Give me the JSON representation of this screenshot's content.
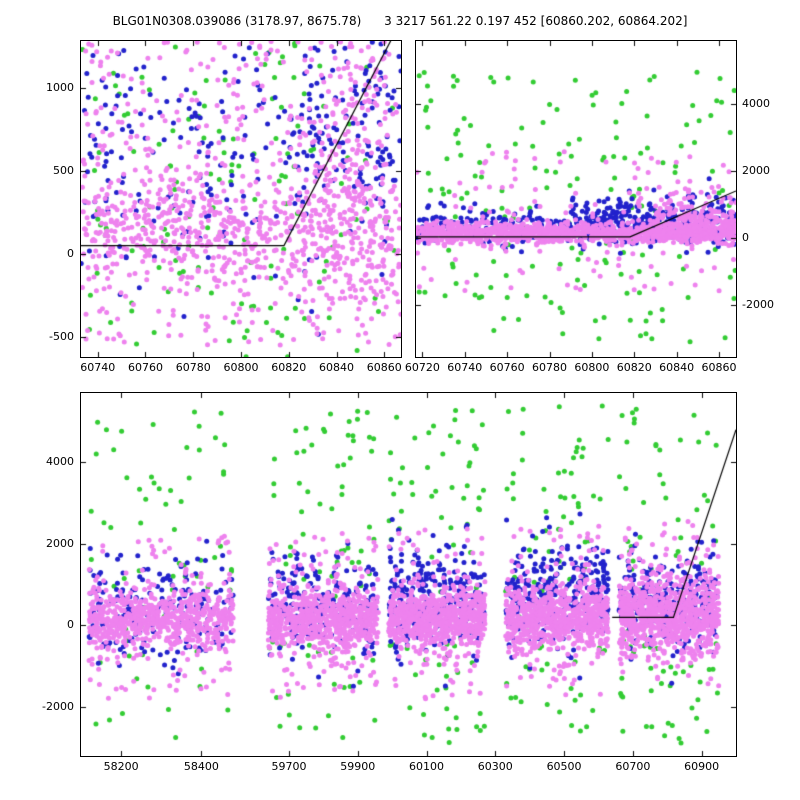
{
  "title": "BLG01N0308.039086 (3178.97, 8675.78)      3 3217 561.22 0.197 452 [60860.202, 60864.202]",
  "colors": {
    "blue": "#2222cc",
    "green": "#33cc33",
    "violet": "#ee82ee",
    "line": "#000000",
    "frame": "#000000",
    "background": "#ffffff"
  },
  "chart_data": [
    {
      "type": "scatter",
      "name": "zoom-left",
      "xlabel": "",
      "ylabel": "",
      "xlim": [
        60733,
        60867
      ],
      "ylim": [
        -620,
        1280
      ],
      "xticks": [
        60740,
        60760,
        60780,
        60800,
        60820,
        60840,
        60860
      ],
      "xtick_labels": [
        "60740",
        "60760",
        "60780",
        "60800",
        "60820",
        "60840",
        "60860"
      ],
      "yticks": [
        1000,
        500,
        0,
        -500
      ],
      "ytick_labels": [
        "1000",
        "500",
        "0",
        "-500"
      ],
      "ytick_side": "left",
      "marker_radius": 2.5,
      "seed": 101,
      "model_line": [
        [
          60733,
          50
        ],
        [
          60818,
          50
        ],
        [
          60867,
          1400
        ]
      ],
      "clusters": [
        {
          "series": "green",
          "n": 140,
          "x": {
            "dist": "uniform",
            "params": [
              60733,
              60867
            ]
          },
          "y": {
            "dist": "uniform",
            "params": [
              -620,
              1280
            ]
          }
        },
        {
          "series": "blue",
          "n": 240,
          "x": {
            "dist": "uniform",
            "params": [
              60733,
              60867
            ]
          },
          "y": {
            "dist": "gauss",
            "params": [
              650,
              450
            ]
          }
        },
        {
          "series": "blue",
          "n": 80,
          "x": {
            "dist": "uniform",
            "params": [
              60825,
              60865
            ]
          },
          "y": {
            "dist": "uniform",
            "params": [
              400,
              1280
            ]
          }
        },
        {
          "series": "violet",
          "n": 550,
          "x": {
            "dist": "uniform",
            "params": [
              60733,
              60867
            ]
          },
          "y": {
            "dist": "gauss",
            "params": [
              150,
              170
            ]
          }
        },
        {
          "series": "violet",
          "n": 430,
          "x": {
            "dist": "uniform",
            "params": [
              60733,
              60867
            ]
          },
          "y": {
            "dist": "uniform",
            "params": [
              -550,
              1280
            ]
          }
        },
        {
          "series": "violet",
          "n": 150,
          "x": {
            "dist": "uniform",
            "params": [
              60833,
              60862
            ]
          },
          "y": {
            "dist": "uniform",
            "params": [
              -300,
              1280
            ]
          }
        }
      ]
    },
    {
      "type": "scatter",
      "name": "zoom-right",
      "xlabel": "",
      "ylabel": "",
      "xlim": [
        60717,
        60868
      ],
      "ylim": [
        -3550,
        5870
      ],
      "xticks": [
        60720,
        60740,
        60760,
        60780,
        60800,
        60820,
        60840,
        60860
      ],
      "xtick_labels": [
        "60720",
        "60740",
        "60760",
        "60780",
        "60800",
        "60820",
        "60840",
        "60860"
      ],
      "yticks": [
        4000,
        2000,
        0,
        -2000
      ],
      "ytick_labels": [
        "4000",
        "2000",
        "0",
        "-2000"
      ],
      "ytick_side": "right",
      "marker_radius": 2.5,
      "seed": 202,
      "model_line": [
        [
          60717,
          30
        ],
        [
          60818,
          30
        ],
        [
          60868,
          1400
        ]
      ],
      "clusters": [
        {
          "series": "green",
          "n": 170,
          "x": {
            "dist": "uniform",
            "params": [
              60717,
              60868
            ]
          },
          "y": {
            "dist": "uniform",
            "params": [
              -3300,
              5000
            ]
          }
        },
        {
          "series": "blue",
          "n": 350,
          "x": {
            "dist": "uniform",
            "params": [
              60717,
              60868
            ]
          },
          "y": {
            "dist": "gauss",
            "params": [
              350,
              280
            ]
          }
        },
        {
          "series": "blue",
          "n": 200,
          "x": {
            "dist": "uniform",
            "params": [
              60790,
              60868
            ]
          },
          "y": {
            "dist": "gauss",
            "params": [
              600,
              350
            ]
          }
        },
        {
          "series": "violet",
          "n": 1050,
          "x": {
            "dist": "uniform",
            "params": [
              60717,
              60868
            ]
          },
          "y": {
            "dist": "gauss",
            "params": [
              150,
              160
            ]
          }
        },
        {
          "series": "violet",
          "n": 120,
          "x": {
            "dist": "uniform",
            "params": [
              60717,
              60868
            ]
          },
          "y": {
            "dist": "uniform",
            "params": [
              -1600,
              2600
            ]
          }
        },
        {
          "series": "violet",
          "n": 160,
          "x": {
            "dist": "uniform",
            "params": [
              60830,
              60868
            ]
          },
          "y": {
            "dist": "gauss",
            "params": [
              600,
              450
            ]
          }
        }
      ]
    },
    {
      "type": "scatter",
      "name": "full-lightcurve",
      "xlabel": "",
      "ylabel": "",
      "xlim": [
        58100,
        61000
      ],
      "x_segments": [
        {
          "domain": [
            58100,
            58500
          ],
          "frac": [
            0.0,
            0.245
          ]
        },
        {
          "domain": [
            59600,
            61000
          ],
          "frac": [
            0.265,
            1.0
          ]
        }
      ],
      "ylim": [
        -3200,
        5700
      ],
      "xticks": [
        58200,
        58400,
        59700,
        59900,
        60100,
        60300,
        60500,
        60700,
        60900
      ],
      "xtick_labels": [
        "58200",
        "58400",
        "59700",
        "59900",
        "60100",
        "60300",
        "60500",
        "60700",
        "60900"
      ],
      "yticks": [
        4000,
        2000,
        0,
        -2000
      ],
      "ytick_labels": [
        "4000",
        "2000",
        "0",
        "-2000"
      ],
      "ytick_side": "left",
      "marker_radius": 2.5,
      "seed": 303,
      "model_line": [
        [
          60640,
          200
        ],
        [
          60818,
          200
        ],
        [
          61000,
          4800
        ]
      ],
      "clusters": [
        {
          "series": "green",
          "n": 70,
          "x": {
            "dist": "uniform",
            "params": [
              58120,
              58480
            ]
          },
          "y": {
            "dist": "uniform",
            "params": [
              -2800,
              5300
            ]
          }
        },
        {
          "series": "blue",
          "n": 200,
          "x": {
            "dist": "uniform",
            "params": [
              58120,
              58480
            ]
          },
          "y": {
            "dist": "gauss",
            "params": [
              400,
              700
            ]
          }
        },
        {
          "series": "violet",
          "n": 600,
          "x": {
            "dist": "uniform",
            "params": [
              58120,
              58480
            ]
          },
          "y": {
            "dist": "gauss",
            "params": [
              150,
              350
            ]
          }
        },
        {
          "series": "violet",
          "n": 120,
          "x": {
            "dist": "uniform",
            "params": [
              58120,
              58480
            ]
          },
          "y": {
            "dist": "uniform",
            "params": [
              -1800,
              2200
            ]
          }
        },
        {
          "series": "green",
          "n": 75,
          "x": {
            "dist": "uniform",
            "params": [
              59640,
              59960
            ]
          },
          "y": {
            "dist": "uniform",
            "params": [
              -2800,
              5300
            ]
          }
        },
        {
          "series": "blue",
          "n": 220,
          "x": {
            "dist": "uniform",
            "params": [
              59640,
              59960
            ]
          },
          "y": {
            "dist": "gauss",
            "params": [
              500,
              650
            ]
          }
        },
        {
          "series": "violet",
          "n": 650,
          "x": {
            "dist": "uniform",
            "params": [
              59640,
              59960
            ]
          },
          "y": {
            "dist": "gauss",
            "params": [
              150,
              350
            ]
          }
        },
        {
          "series": "violet",
          "n": 120,
          "x": {
            "dist": "uniform",
            "params": [
              59640,
              59960
            ]
          },
          "y": {
            "dist": "uniform",
            "params": [
              -1800,
              2300
            ]
          }
        },
        {
          "series": "green",
          "n": 75,
          "x": {
            "dist": "uniform",
            "params": [
              59990,
              60270
            ]
          },
          "y": {
            "dist": "uniform",
            "params": [
              -2900,
              5400
            ]
          }
        },
        {
          "series": "blue",
          "n": 260,
          "x": {
            "dist": "uniform",
            "params": [
              59990,
              60270
            ]
          },
          "y": {
            "dist": "gauss",
            "params": [
              700,
              650
            ]
          }
        },
        {
          "series": "violet",
          "n": 650,
          "x": {
            "dist": "uniform",
            "params": [
              59990,
              60270
            ]
          },
          "y": {
            "dist": "gauss",
            "params": [
              180,
              350
            ]
          }
        },
        {
          "series": "violet",
          "n": 110,
          "x": {
            "dist": "uniform",
            "params": [
              59990,
              60270
            ]
          },
          "y": {
            "dist": "uniform",
            "params": [
              -1800,
              2400
            ]
          }
        },
        {
          "series": "green",
          "n": 80,
          "x": {
            "dist": "uniform",
            "params": [
              60330,
              60630
            ]
          },
          "y": {
            "dist": "uniform",
            "params": [
              -2900,
              5400
            ]
          }
        },
        {
          "series": "blue",
          "n": 300,
          "x": {
            "dist": "uniform",
            "params": [
              60330,
              60630
            ]
          },
          "y": {
            "dist": "gauss",
            "params": [
              800,
              650
            ]
          }
        },
        {
          "series": "violet",
          "n": 700,
          "x": {
            "dist": "uniform",
            "params": [
              60330,
              60630
            ]
          },
          "y": {
            "dist": "gauss",
            "params": [
              200,
              380
            ]
          }
        },
        {
          "series": "violet",
          "n": 110,
          "x": {
            "dist": "uniform",
            "params": [
              60330,
              60630
            ]
          },
          "y": {
            "dist": "uniform",
            "params": [
              -1700,
              2500
            ]
          }
        },
        {
          "series": "green",
          "n": 85,
          "x": {
            "dist": "uniform",
            "params": [
              60660,
              60950
            ]
          },
          "y": {
            "dist": "uniform",
            "params": [
              -2900,
              5400
            ]
          }
        },
        {
          "series": "blue",
          "n": 260,
          "x": {
            "dist": "uniform",
            "params": [
              60660,
              60950
            ]
          },
          "y": {
            "dist": "gauss",
            "params": [
              600,
              600
            ]
          }
        },
        {
          "series": "violet",
          "n": 750,
          "x": {
            "dist": "uniform",
            "params": [
              60660,
              60950
            ]
          },
          "y": {
            "dist": "gauss",
            "params": [
              300,
              450
            ]
          }
        },
        {
          "series": "violet",
          "n": 100,
          "x": {
            "dist": "uniform",
            "params": [
              60660,
              60950
            ]
          },
          "y": {
            "dist": "uniform",
            "params": [
              -1500,
              2600
            ]
          }
        }
      ]
    }
  ]
}
